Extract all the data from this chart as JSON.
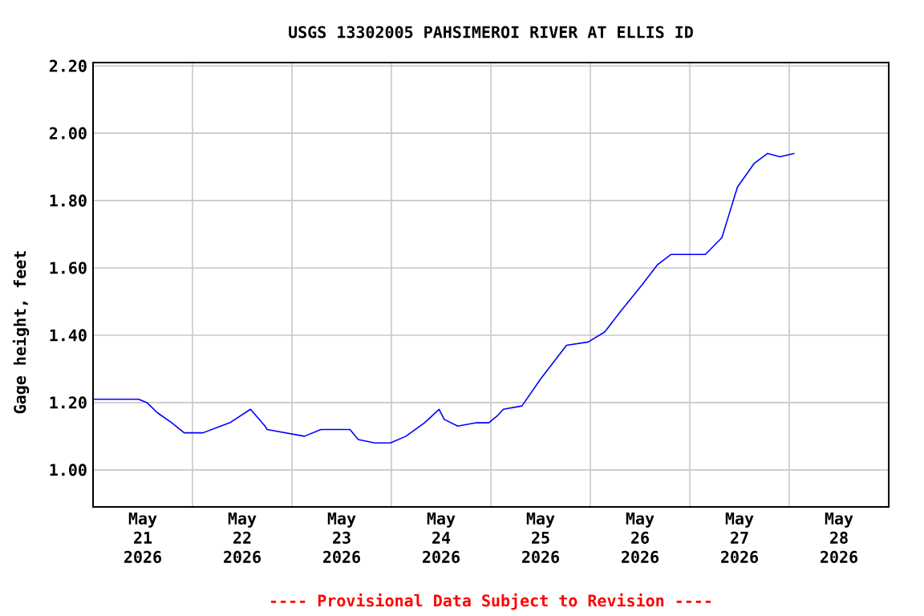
{
  "chart_data": {
    "type": "line",
    "title": "USGS 13302005 PAHSIMEROI RIVER AT ELLIS ID",
    "ylabel": "Gage height, feet",
    "annotations": [
      "---- Provisional Data Subject to Revision ----"
    ],
    "x": [
      "2026-05-21T00:00",
      "2026-05-21T11:00",
      "2026-05-21T13:00",
      "2026-05-21T15:30",
      "2026-05-21T19:00",
      "2026-05-21T22:00",
      "2026-05-22T02:30",
      "2026-05-22T09:00",
      "2026-05-22T14:00",
      "2026-05-22T17:30",
      "2026-05-22T18:00",
      "2026-05-23T03:00",
      "2026-05-23T07:00",
      "2026-05-23T14:00",
      "2026-05-23T16:00",
      "2026-05-23T20:00",
      "2026-05-23T23:45",
      "2026-05-24T03:30",
      "2026-05-24T08:00",
      "2026-05-24T11:30",
      "2026-05-24T12:45",
      "2026-05-24T16:00",
      "2026-05-24T20:30",
      "2026-05-24T23:30",
      "2026-05-25T01:30",
      "2026-05-25T03:00",
      "2026-05-25T07:30",
      "2026-05-25T12:00",
      "2026-05-25T18:15",
      "2026-05-25T23:30",
      "2026-05-26T03:30",
      "2026-05-26T07:15",
      "2026-05-26T12:30",
      "2026-05-26T16:15",
      "2026-05-26T19:30",
      "2026-05-27T03:45",
      "2026-05-27T07:45",
      "2026-05-27T09:30",
      "2026-05-27T11:30",
      "2026-05-27T15:30",
      "2026-05-27T18:45",
      "2026-05-27T21:45",
      "2026-05-28T01:15"
    ],
    "series": [
      {
        "color": "#0000ff",
        "values": [
          1.21,
          1.21,
          1.2,
          1.17,
          1.14,
          1.11,
          1.11,
          1.14,
          1.18,
          1.13,
          1.12,
          1.1,
          1.12,
          1.12,
          1.09,
          1.08,
          1.08,
          1.1,
          1.14,
          1.18,
          1.15,
          1.13,
          1.14,
          1.14,
          1.16,
          1.18,
          1.19,
          1.27,
          1.37,
          1.38,
          1.41,
          1.47,
          1.55,
          1.61,
          1.64,
          1.64,
          1.69,
          1.76,
          1.84,
          1.91,
          1.94,
          1.93,
          1.94
        ]
      }
    ],
    "xlim": [
      "2026-05-21T00:00",
      "2026-05-29T00:00"
    ],
    "xticks": [
      {
        "value": "2026-05-21T00:00",
        "label": null
      },
      {
        "value": "2026-05-21T12:00",
        "label": "May 21 2026"
      },
      {
        "value": "2026-05-22T00:00",
        "label": null
      },
      {
        "value": "2026-05-22T12:00",
        "label": "May 22 2026"
      },
      {
        "value": "2026-05-23T00:00",
        "label": null
      },
      {
        "value": "2026-05-23T12:00",
        "label": "May 23 2026"
      },
      {
        "value": "2026-05-24T00:00",
        "label": null
      },
      {
        "value": "2026-05-24T12:00",
        "label": "May 24 2026"
      },
      {
        "value": "2026-05-25T00:00",
        "label": null
      },
      {
        "value": "2026-05-25T12:00",
        "label": "May 25 2026"
      },
      {
        "value": "2026-05-26T00:00",
        "label": null
      },
      {
        "value": "2026-05-26T12:00",
        "label": "May 26 2026"
      },
      {
        "value": "2026-05-27T00:00",
        "label": null
      },
      {
        "value": "2026-05-27T12:00",
        "label": "May 27 2026"
      },
      {
        "value": "2026-05-28T00:00",
        "label": null
      },
      {
        "value": "2026-05-28T12:00",
        "label": "May 28 2026"
      },
      {
        "value": "2026-05-29T00:00",
        "label": null
      }
    ],
    "ylim": [
      0.89,
      2.21
    ],
    "yticks": [
      {
        "value": 1.0,
        "label": "1.00"
      },
      {
        "value": 1.2,
        "label": "1.20"
      },
      {
        "value": 1.4,
        "label": "1.40"
      },
      {
        "value": 1.6,
        "label": "1.60"
      },
      {
        "value": 1.8,
        "label": "1.80"
      },
      {
        "value": 2.0,
        "label": "2.00"
      },
      {
        "value": 2.2,
        "label": "2.20"
      }
    ],
    "grid": true,
    "marker": "none",
    "line_style": "solid"
  }
}
